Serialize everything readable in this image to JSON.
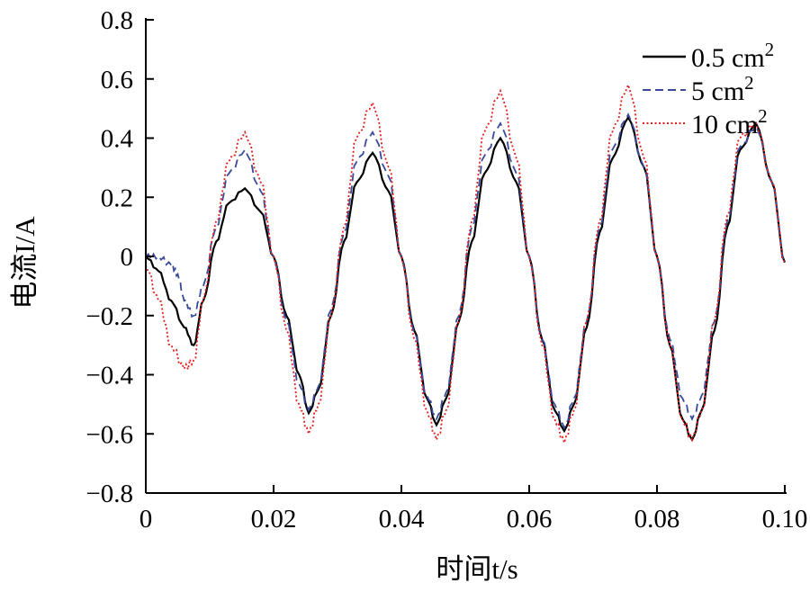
{
  "chart_data": {
    "type": "line",
    "xlabel": "时间t/s",
    "ylabel": "电流I/A",
    "xlim": [
      0,
      0.1
    ],
    "ylim": [
      -0.8,
      0.8
    ],
    "x_ticks": [
      "0",
      "0.02",
      "0.04",
      "0.06",
      "0.08",
      "0.10"
    ],
    "y_ticks": [
      "0.8",
      "0.6",
      "0.4",
      "0.2",
      "0",
      "−0.2",
      "−0.4",
      "−0.6",
      "−0.8"
    ],
    "legend_position": "top-right",
    "grid": false,
    "series": [
      {
        "name": "0.5 cm",
        "name_sup": "2",
        "color": "#000000",
        "style": "solid",
        "x": [
          0,
          0.002,
          0.004,
          0.006,
          0.0075,
          0.009,
          0.011,
          0.013,
          0.0155,
          0.018,
          0.02,
          0.022,
          0.024,
          0.0255,
          0.027,
          0.029,
          0.031,
          0.033,
          0.0355,
          0.038,
          0.04,
          0.042,
          0.044,
          0.0455,
          0.047,
          0.049,
          0.051,
          0.053,
          0.0555,
          0.058,
          0.06,
          0.062,
          0.064,
          0.0655,
          0.067,
          0.069,
          0.071,
          0.073,
          0.0755,
          0.078,
          0.08,
          0.082,
          0.084,
          0.0855,
          0.087,
          0.089,
          0.091,
          0.093,
          0.0955,
          0.098,
          0.1
        ],
        "y": [
          0,
          -0.05,
          -0.15,
          -0.24,
          -0.3,
          -0.15,
          0.05,
          0.18,
          0.23,
          0.15,
          0,
          -0.2,
          -0.4,
          -0.53,
          -0.45,
          -0.2,
          0.05,
          0.25,
          0.35,
          0.22,
          0,
          -0.25,
          -0.48,
          -0.57,
          -0.48,
          -0.22,
          0.05,
          0.28,
          0.4,
          0.25,
          0,
          -0.28,
          -0.52,
          -0.59,
          -0.5,
          -0.24,
          0.08,
          0.33,
          0.47,
          0.3,
          0,
          -0.3,
          -0.55,
          -0.62,
          -0.52,
          -0.25,
          0.1,
          0.36,
          0.45,
          0.25,
          -0.02
        ]
      },
      {
        "name": "5 cm",
        "name_sup": "2",
        "color": "#3a4a9a",
        "style": "dashed",
        "x": [
          0,
          0.002,
          0.004,
          0.005,
          0.006,
          0.0075,
          0.009,
          0.011,
          0.013,
          0.0155,
          0.018,
          0.02,
          0.022,
          0.024,
          0.0255,
          0.027,
          0.029,
          0.031,
          0.033,
          0.0355,
          0.038,
          0.04,
          0.042,
          0.044,
          0.0455,
          0.047,
          0.049,
          0.051,
          0.053,
          0.0555,
          0.058,
          0.06,
          0.062,
          0.064,
          0.0655,
          0.067,
          0.069,
          0.071,
          0.073,
          0.0755,
          0.078,
          0.08,
          0.082,
          0.084,
          0.0855,
          0.087,
          0.089,
          0.091,
          0.093,
          0.0955,
          0.098,
          0.1
        ],
        "y": [
          0,
          0,
          -0.03,
          -0.06,
          -0.15,
          -0.2,
          -0.1,
          0.1,
          0.28,
          0.36,
          0.22,
          0,
          -0.22,
          -0.43,
          -0.52,
          -0.44,
          -0.18,
          0.08,
          0.32,
          0.42,
          0.27,
          0,
          -0.26,
          -0.47,
          -0.55,
          -0.46,
          -0.2,
          0.1,
          0.34,
          0.45,
          0.28,
          0,
          -0.28,
          -0.5,
          -0.58,
          -0.48,
          -0.22,
          0.1,
          0.36,
          0.48,
          0.3,
          0,
          -0.28,
          -0.48,
          -0.55,
          -0.47,
          -0.22,
          0.12,
          0.37,
          0.44,
          0.25,
          -0.02
        ]
      },
      {
        "name": "10 cm",
        "name_sup": "2",
        "color": "#e02020",
        "style": "dotted",
        "x": [
          0,
          0.002,
          0.004,
          0.006,
          0.0075,
          0.009,
          0.011,
          0.013,
          0.0155,
          0.018,
          0.02,
          0.022,
          0.024,
          0.0255,
          0.027,
          0.029,
          0.031,
          0.033,
          0.0355,
          0.038,
          0.04,
          0.042,
          0.044,
          0.0455,
          0.047,
          0.049,
          0.051,
          0.053,
          0.0555,
          0.058,
          0.06,
          0.062,
          0.064,
          0.0655,
          0.067,
          0.069,
          0.071,
          0.073,
          0.0755,
          0.078,
          0.08,
          0.082,
          0.084,
          0.0855,
          0.087,
          0.089,
          0.091,
          0.093,
          0.0955,
          0.098,
          0.1
        ],
        "y": [
          -0.03,
          -0.15,
          -0.3,
          -0.38,
          -0.35,
          -0.15,
          0.12,
          0.32,
          0.42,
          0.25,
          0,
          -0.25,
          -0.5,
          -0.6,
          -0.5,
          -0.2,
          0.1,
          0.4,
          0.52,
          0.3,
          0,
          -0.28,
          -0.52,
          -0.62,
          -0.52,
          -0.22,
          0.12,
          0.42,
          0.56,
          0.33,
          0,
          -0.3,
          -0.55,
          -0.63,
          -0.52,
          -0.22,
          0.12,
          0.42,
          0.58,
          0.33,
          0,
          -0.3,
          -0.55,
          -0.62,
          -0.52,
          -0.22,
          0.14,
          0.4,
          0.45,
          0.25,
          -0.02
        ]
      }
    ]
  }
}
